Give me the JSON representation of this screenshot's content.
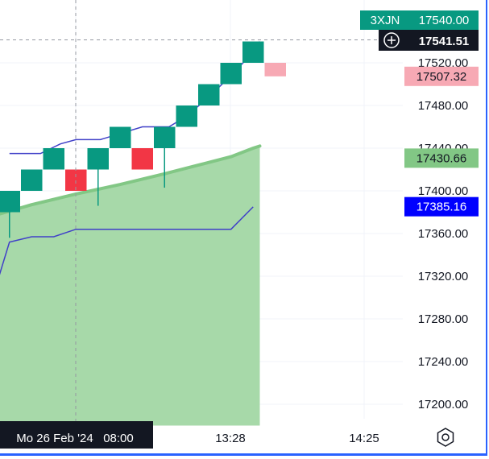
{
  "chart_data": {
    "type": "renko",
    "symbol": "3XJN",
    "symbol_price": "17540.00",
    "crosshair_price": "17541.51",
    "ylim": [
      17180,
      17555
    ],
    "y_ticks": [
      "17520.00",
      "17480.00",
      "17440.00",
      "17400.00",
      "17360.00",
      "17320.00",
      "17280.00",
      "17240.00",
      "17200.00"
    ],
    "x_ticks": [
      "13:28",
      "14:25"
    ],
    "crosshair_time": "Mo 26 Feb '24   08:00",
    "brick_size": 20,
    "bricks": [
      {
        "i": 0,
        "low": 17380,
        "high": 17400,
        "dir": "up"
      },
      {
        "i": 1,
        "low": 17400,
        "high": 17420,
        "dir": "up"
      },
      {
        "i": 2,
        "low": 17420,
        "high": 17440,
        "dir": "up"
      },
      {
        "i": 3,
        "low": 17400,
        "high": 17420,
        "dir": "down"
      },
      {
        "i": 4,
        "low": 17420,
        "high": 17440,
        "dir": "up"
      },
      {
        "i": 5,
        "low": 17440,
        "high": 17460,
        "dir": "up"
      },
      {
        "i": 6,
        "low": 17420,
        "high": 17440,
        "dir": "down"
      },
      {
        "i": 7,
        "low": 17440,
        "high": 17460,
        "dir": "up"
      },
      {
        "i": 8,
        "low": 17460,
        "high": 17480,
        "dir": "up"
      },
      {
        "i": 9,
        "low": 17480,
        "high": 17500,
        "dir": "up"
      },
      {
        "i": 10,
        "low": 17500,
        "high": 17520,
        "dir": "up"
      },
      {
        "i": 11,
        "low": 17520,
        "high": 17540,
        "dir": "up"
      }
    ],
    "projected_brick": {
      "i": 12,
      "low": 17507.32,
      "high": 17520,
      "dir": "down"
    },
    "wicks": [
      {
        "i": 0,
        "low": 17356
      },
      {
        "i": 4,
        "low": 17386
      },
      {
        "i": 7,
        "low": 17403
      }
    ],
    "upper_line": [
      [
        0,
        17435
      ],
      [
        1.4,
        17435
      ],
      [
        2.3,
        17444
      ],
      [
        3,
        17448
      ],
      [
        4.1,
        17448
      ],
      [
        6,
        17460
      ],
      [
        7.2,
        17460
      ],
      [
        8,
        17470
      ],
      [
        9,
        17488
      ],
      [
        10,
        17508
      ],
      [
        11,
        17530
      ],
      [
        11.3,
        17540
      ]
    ],
    "lower_line": [
      [
        -0.5,
        17318
      ],
      [
        0,
        17352
      ],
      [
        1,
        17357
      ],
      [
        2,
        17357
      ],
      [
        3,
        17364
      ],
      [
        10,
        17364
      ],
      [
        11,
        17385
      ]
    ],
    "area_series": [
      [
        -0.5,
        17378
      ],
      [
        1,
        17387
      ],
      [
        3,
        17397
      ],
      [
        5,
        17406
      ],
      [
        7,
        17416
      ],
      [
        8.5,
        17424
      ],
      [
        10,
        17432
      ],
      [
        11,
        17440
      ],
      [
        11.3,
        17442
      ]
    ],
    "area_base": 17180,
    "price_labels": [
      {
        "value": 17507.32,
        "text": "17507.32",
        "bg": "#f7a9b4",
        "fg": "#131722"
      },
      {
        "value": 17430.66,
        "text": "17430.66",
        "bg": "#82c785",
        "fg": "#131722"
      },
      {
        "value": 17385.16,
        "text": "17385.16",
        "bg": "#0000ff",
        "fg": "#ffffff"
      }
    ],
    "colors": {
      "up": "#089981",
      "down": "#f23645",
      "projected": "#f7a9b4",
      "line": "#4040c8",
      "area_fill": "#a7d9a9",
      "area_line": "#82c785",
      "symbol_tag": "#089981",
      "crosshair_tag": "#131722"
    }
  }
}
